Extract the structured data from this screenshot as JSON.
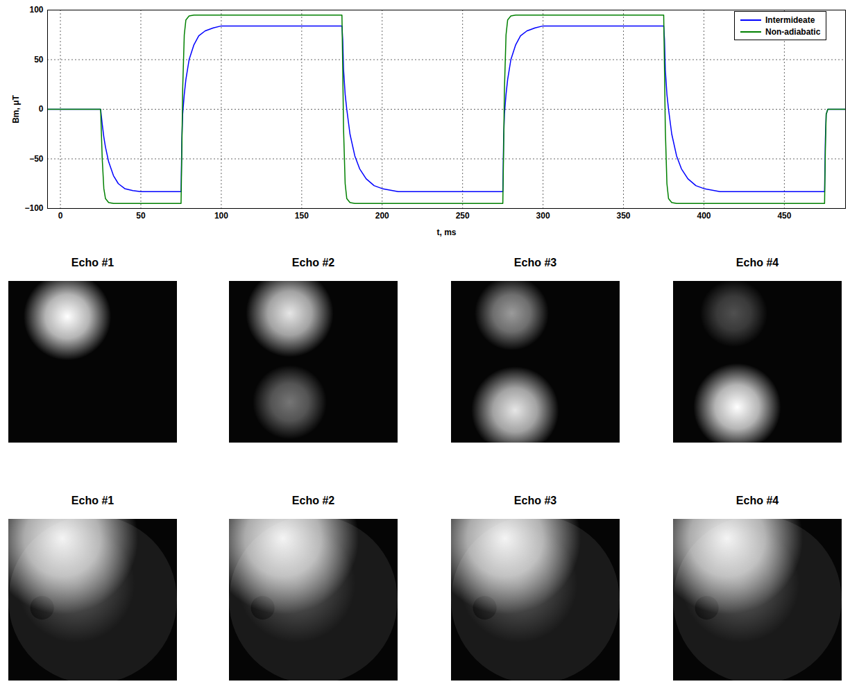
{
  "chart_data": {
    "type": "line",
    "xlabel": "t, ms",
    "ylabel": "Bm, μT",
    "x": [
      -8,
      25,
      26,
      27,
      28,
      30,
      33,
      36,
      40,
      45,
      50,
      60,
      75,
      75.5,
      76,
      77,
      78,
      80,
      83,
      86,
      90,
      95,
      100,
      110,
      175,
      175.5,
      176,
      177,
      178,
      180,
      183,
      186,
      190,
      195,
      200,
      210,
      275,
      275.5,
      276,
      277,
      278,
      280,
      283,
      286,
      290,
      295,
      300,
      310,
      375,
      375.5,
      376,
      377,
      378,
      380,
      383,
      386,
      390,
      395,
      400,
      410,
      475,
      475.5,
      476,
      477,
      480,
      488
    ],
    "series": [
      {
        "name": "Intermideate",
        "color": "#0000ff",
        "values": [
          0,
          0,
          -15,
          -28,
          -38,
          -53,
          -67,
          -75,
          -80,
          -82,
          -83,
          -83,
          -83,
          -30,
          -5,
          15,
          30,
          50,
          65,
          74,
          79,
          82,
          84,
          84,
          84,
          70,
          40,
          15,
          0,
          -25,
          -47,
          -60,
          -70,
          -77,
          -80,
          -83,
          -83,
          -30,
          -5,
          15,
          30,
          50,
          65,
          74,
          79,
          82,
          84,
          84,
          84,
          70,
          40,
          15,
          0,
          -25,
          -47,
          -60,
          -70,
          -77,
          -80,
          -83,
          -83,
          -30,
          -5,
          0,
          0,
          0
        ]
      },
      {
        "name": "Non-adiabatic",
        "color": "#008000",
        "values": [
          0,
          0,
          -50,
          -80,
          -90,
          -94,
          -95,
          -95,
          -95,
          -95,
          -95,
          -95,
          -95,
          -40,
          20,
          75,
          90,
          94,
          95,
          95,
          95,
          95,
          95,
          95,
          95,
          40,
          -20,
          -75,
          -90,
          -94,
          -95,
          -95,
          -95,
          -95,
          -95,
          -95,
          -95,
          -40,
          20,
          75,
          90,
          94,
          95,
          95,
          95,
          95,
          95,
          95,
          95,
          40,
          -20,
          -75,
          -90,
          -94,
          -95,
          -95,
          -95,
          -95,
          -95,
          -95,
          -95,
          -40,
          -5,
          0,
          0,
          0
        ]
      }
    ],
    "xlim": [
      -8,
      488
    ],
    "ylim": [
      -100,
      100
    ],
    "xticks": [
      0,
      50,
      100,
      150,
      200,
      250,
      300,
      350,
      400,
      450
    ],
    "yticks": [
      -100,
      -50,
      0,
      50,
      100
    ],
    "grid": true,
    "legend": "top-right"
  },
  "image_panels": {
    "rows": [
      [
        "Echo #1",
        "Echo #2",
        "Echo #3",
        "Echo #4"
      ],
      [
        "Echo #1",
        "Echo #2",
        "Echo #3",
        "Echo #4"
      ]
    ]
  }
}
